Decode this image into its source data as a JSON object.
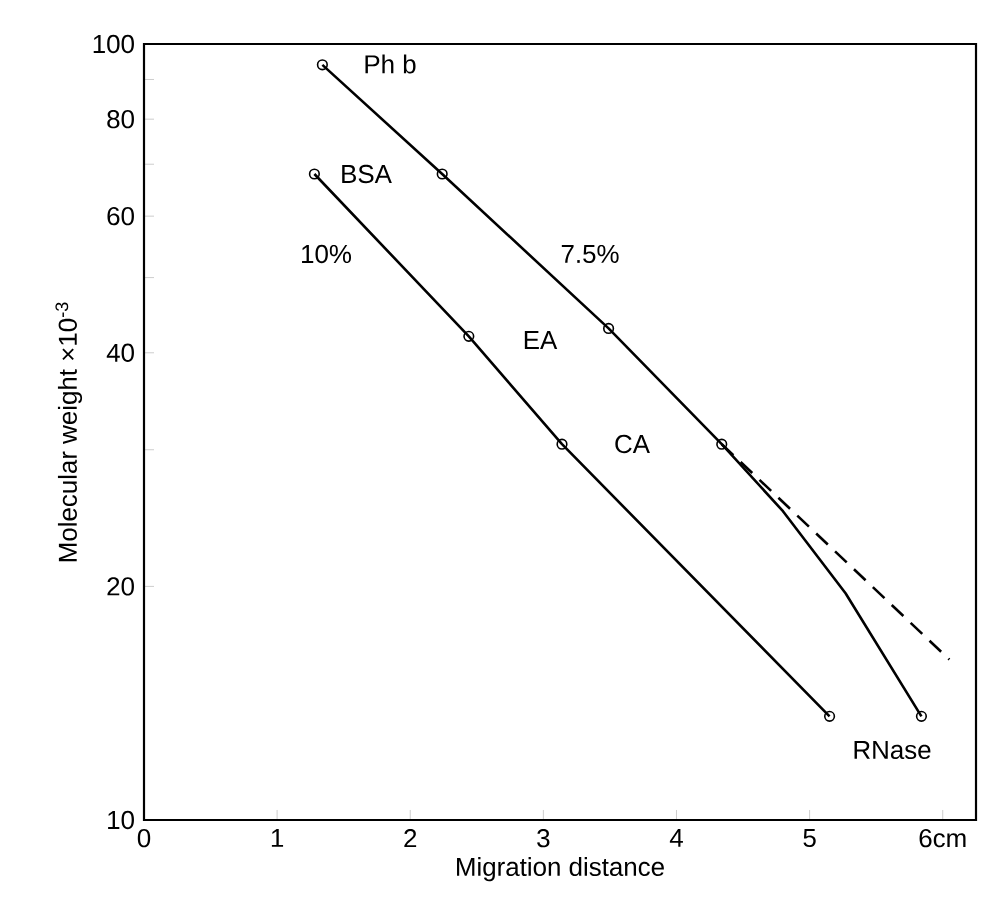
{
  "chart_data": {
    "type": "line",
    "xlabel": "Migration distance",
    "ylabel": "Molecular weight ×10$^{-3}$",
    "log": "y",
    "marker": "circle",
    "line_style": "solid",
    "xlim": [
      0,
      6.25
    ],
    "ylim": [
      10,
      100
    ],
    "xticks": [
      0,
      1,
      2,
      3,
      4,
      5,
      {
        "value": 6,
        "label": "6cm"
      }
    ],
    "yticks": [
      10,
      20,
      {
        "value": 30,
        "label": null
      },
      40,
      {
        "value": 50,
        "label": null
      },
      60,
      {
        "value": 70,
        "label": null
      },
      80,
      {
        "value": 90,
        "label": null
      },
      100
    ],
    "series": [
      {
        "color": "#000000",
        "x": [
          1.34,
          2.24,
          3.49,
          4.34,
          4.8,
          5.27,
          5.84
        ],
        "values": [
          94,
          68,
          43,
          30.5,
          25,
          19.6,
          13.6
        ],
        "marker": "none"
      },
      {
        "type": "scatter",
        "color": "#000000",
        "x": [
          1.34,
          2.24,
          3.49,
          4.34,
          5.84
        ],
        "values": [
          94,
          68,
          43,
          30.5,
          13.6
        ],
        "marker": "circle"
      },
      {
        "color": "#000000",
        "x": [
          4.34,
          6.05
        ],
        "values": [
          30.5,
          16.1
        ],
        "marker": "none",
        "line_style": "dashed"
      },
      {
        "color": "#000000",
        "x": [
          1.28,
          2.44,
          3.14,
          5.15
        ],
        "values": [
          68,
          42,
          30.5,
          13.6
        ]
      }
    ],
    "annotations": [
      "Ph b",
      "BSA",
      "10%",
      "7.5%",
      "EA",
      "CA",
      "RNase"
    ]
  }
}
